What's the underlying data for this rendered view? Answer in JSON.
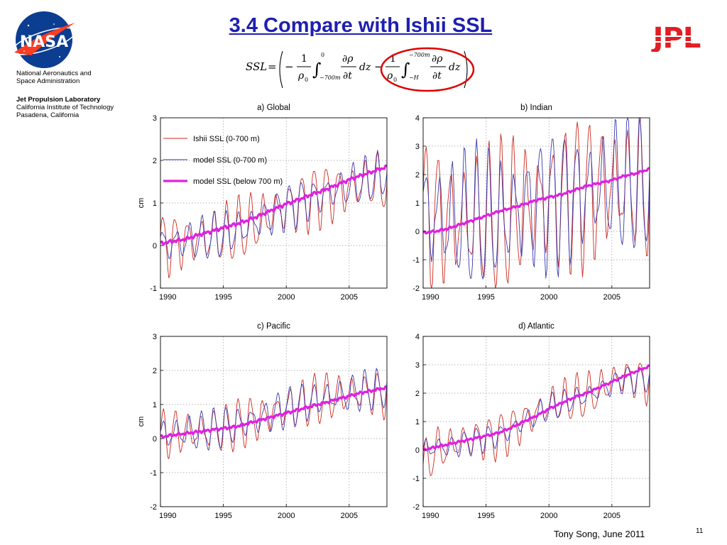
{
  "header": {
    "title": "3.4 Compare with Ishii SSL",
    "nasa_logo_text": "NASA",
    "agency_line1": "National Aeronautics and",
    "agency_line2": "Space Administration",
    "lab_line1": "Jet Propulsion Laboratory",
    "lab_line2": "California Institute of Technology",
    "lab_line3": "Pasadena, California",
    "jpl_logo_text": "JPL",
    "equation": {
      "lhs": "SSL",
      "one": "1",
      "rho0": "ρ",
      "sub0": "0",
      "upper1": "0",
      "lower1": "−700m",
      "upper2": "−700m",
      "lower2": "−H",
      "drho": "∂ρ",
      "dt": "∂t",
      "dz": "dz",
      "highlight_color": "#e00000"
    }
  },
  "footer": {
    "author": "Tony Song, June 2011",
    "slide_number": "11"
  },
  "colors": {
    "ishii": "#cc2a1e",
    "model": "#3a3ab0",
    "below": "#e020e0",
    "title": "#1f1fb0",
    "jpl": "#e21d23"
  },
  "legend": {
    "ishii": "Ishii SSL (0-700 m)",
    "model": "model SSL (0-700 m)",
    "below": "model SSL (below 700 m)"
  },
  "chart_data": [
    {
      "type": "line",
      "title": "a) Global",
      "ylabel": "cm",
      "xlim": [
        1990,
        2008
      ],
      "ylim": [
        -1,
        3
      ],
      "xticks": [
        1990,
        1995,
        2000,
        2005
      ],
      "yticks": [
        -1,
        0,
        1,
        2,
        3
      ],
      "grid": true,
      "legend": "top-left",
      "series": [
        {
          "name": "Ishii SSL (0-700 m)",
          "x": [
            1990,
            1991,
            1992,
            1993,
            1994,
            1995,
            1996,
            1997,
            1998,
            1999,
            2000,
            2001,
            2002,
            2003,
            2004,
            2005,
            2006,
            2007,
            2008
          ],
          "trend": [
            0.0,
            0.05,
            0.1,
            0.15,
            0.2,
            0.25,
            0.35,
            0.45,
            0.6,
            0.75,
            0.9,
            1.0,
            1.1,
            1.2,
            1.25,
            1.35,
            1.45,
            1.5,
            1.5
          ],
          "amplitude": 0.55
        },
        {
          "name": "model SSL (0-700 m)",
          "x": [
            1990,
            1991,
            1992,
            1993,
            1994,
            1995,
            1996,
            1997,
            1998,
            1999,
            2000,
            2001,
            2002,
            2003,
            2004,
            2005,
            2006,
            2007,
            2008
          ],
          "trend": [
            0.0,
            0.05,
            0.1,
            0.15,
            0.2,
            0.25,
            0.35,
            0.45,
            0.6,
            0.75,
            0.9,
            1.0,
            1.1,
            1.2,
            1.3,
            1.4,
            1.5,
            1.6,
            1.65
          ],
          "amplitude": 0.4
        },
        {
          "name": "model SSL (below 700 m)",
          "x": [
            1990,
            1991,
            1992,
            1993,
            1994,
            1995,
            1996,
            1997,
            1998,
            1999,
            2000,
            2001,
            2002,
            2003,
            2004,
            2005,
            2006,
            2007,
            2008
          ],
          "values": [
            0.05,
            0.1,
            0.15,
            0.25,
            0.33,
            0.42,
            0.5,
            0.6,
            0.72,
            0.85,
            0.98,
            1.08,
            1.2,
            1.3,
            1.42,
            1.55,
            1.65,
            1.75,
            1.85
          ]
        }
      ]
    },
    {
      "type": "line",
      "title": "b) Indian",
      "ylabel": "",
      "xlim": [
        1990,
        2008
      ],
      "ylim": [
        -2,
        4
      ],
      "xticks": [
        1990,
        1995,
        2000,
        2005
      ],
      "yticks": [
        -2,
        -1,
        0,
        1,
        2,
        3,
        4
      ],
      "grid": true,
      "legend": "",
      "series": [
        {
          "name": "Ishii SSL (0-700 m)",
          "x": [
            1990,
            1991,
            1992,
            1993,
            1994,
            1995,
            1996,
            1997,
            1998,
            1999,
            2000,
            2001,
            2002,
            2003,
            2004,
            2005,
            2006,
            2007,
            2008
          ],
          "trend": [
            0.6,
            0.5,
            0.4,
            0.4,
            0.4,
            0.4,
            0.4,
            0.6,
            0.8,
            1.0,
            1.1,
            1.2,
            1.3,
            1.4,
            1.5,
            1.6,
            1.6,
            1.5,
            1.5
          ],
          "amplitude": 2.0
        },
        {
          "name": "model SSL (0-700 m)",
          "x": [
            1990,
            1991,
            1992,
            1993,
            1994,
            1995,
            1996,
            1997,
            1998,
            1999,
            2000,
            2001,
            2002,
            2003,
            2004,
            2005,
            2006,
            2007,
            2008
          ],
          "trend": [
            0.6,
            0.5,
            0.4,
            0.4,
            0.4,
            0.4,
            0.4,
            0.6,
            0.8,
            1.0,
            1.1,
            1.2,
            1.3,
            1.4,
            1.5,
            1.6,
            1.6,
            1.6,
            1.6
          ],
          "amplitude": 1.85
        },
        {
          "name": "model SSL (below 700 m)",
          "x": [
            1990,
            1991,
            1992,
            1993,
            1994,
            1995,
            1996,
            1997,
            1998,
            1999,
            2000,
            2001,
            2002,
            2003,
            2004,
            2005,
            2006,
            2007,
            2008
          ],
          "values": [
            -0.05,
            0.0,
            0.1,
            0.25,
            0.4,
            0.55,
            0.7,
            0.82,
            0.95,
            1.1,
            1.2,
            1.3,
            1.45,
            1.6,
            1.7,
            1.8,
            1.95,
            2.05,
            2.2
          ]
        }
      ]
    },
    {
      "type": "line",
      "title": "c) Pacific",
      "ylabel": "cm",
      "xlim": [
        1990,
        2008
      ],
      "ylim": [
        -2,
        3
      ],
      "xticks": [
        1990,
        1995,
        2000,
        2005
      ],
      "yticks": [
        -2,
        -1,
        0,
        1,
        2,
        3
      ],
      "grid": true,
      "legend": "",
      "series": [
        {
          "name": "Ishii SSL (0-700 m)",
          "x": [
            1990,
            1991,
            1992,
            1993,
            1994,
            1995,
            1996,
            1997,
            1998,
            1999,
            2000,
            2001,
            2002,
            2003,
            2004,
            2005,
            2006,
            2007,
            2008
          ],
          "trend": [
            0.1,
            0.15,
            0.2,
            0.2,
            0.25,
            0.3,
            0.4,
            0.5,
            0.6,
            0.75,
            0.9,
            1.0,
            1.1,
            1.2,
            1.25,
            1.3,
            1.35,
            1.3,
            1.3
          ],
          "amplitude": 0.55
        },
        {
          "name": "model SSL (0-700 m)",
          "x": [
            1990,
            1991,
            1992,
            1993,
            1994,
            1995,
            1996,
            1997,
            1998,
            1999,
            2000,
            2001,
            2002,
            2003,
            2004,
            2005,
            2006,
            2007,
            2008
          ],
          "trend": [
            0.1,
            0.15,
            0.2,
            0.2,
            0.25,
            0.3,
            0.4,
            0.5,
            0.6,
            0.75,
            0.9,
            1.0,
            1.1,
            1.2,
            1.25,
            1.3,
            1.4,
            1.45,
            1.45
          ],
          "amplitude": 0.45
        },
        {
          "name": "model SSL (below 700 m)",
          "x": [
            1990,
            1991,
            1992,
            1993,
            1994,
            1995,
            1996,
            1997,
            1998,
            1999,
            2000,
            2001,
            2002,
            2003,
            2004,
            2005,
            2006,
            2007,
            2008
          ],
          "values": [
            0.05,
            0.1,
            0.15,
            0.2,
            0.25,
            0.3,
            0.35,
            0.45,
            0.55,
            0.65,
            0.75,
            0.85,
            0.95,
            1.05,
            1.15,
            1.25,
            1.35,
            1.42,
            1.5
          ]
        }
      ]
    },
    {
      "type": "line",
      "title": "d) Atlantic",
      "ylabel": "",
      "xlim": [
        1990,
        2008
      ],
      "ylim": [
        -2,
        4
      ],
      "xticks": [
        1990,
        1995,
        2000,
        2005
      ],
      "yticks": [
        -2,
        -1,
        0,
        1,
        2,
        3,
        4
      ],
      "grid": true,
      "legend": "",
      "series": [
        {
          "name": "Ishii SSL (0-700 m)",
          "x": [
            1990,
            1991,
            1992,
            1993,
            1994,
            1995,
            1996,
            1997,
            1998,
            1999,
            2000,
            2001,
            2002,
            2003,
            2004,
            2005,
            2006,
            2007,
            2008
          ],
          "trend": [
            -0.6,
            0.0,
            0.1,
            0.3,
            0.4,
            0.4,
            0.5,
            0.7,
            1.0,
            1.3,
            1.6,
            1.7,
            1.8,
            1.9,
            2.1,
            2.4,
            2.6,
            2.5,
            2.4
          ],
          "amplitude": 0.6
        },
        {
          "name": "model SSL (0-700 m)",
          "x": [
            1990,
            1991,
            1992,
            1993,
            1994,
            1995,
            1996,
            1997,
            1998,
            1999,
            2000,
            2001,
            2002,
            2003,
            2004,
            2005,
            2006,
            2007,
            2008
          ],
          "trend": [
            0.0,
            0.1,
            0.1,
            0.2,
            0.3,
            0.4,
            0.5,
            0.7,
            1.0,
            1.2,
            1.5,
            1.6,
            1.8,
            1.9,
            2.1,
            2.3,
            2.5,
            2.5,
            2.5
          ],
          "amplitude": 0.35
        },
        {
          "name": "model SSL (below 700 m)",
          "x": [
            1990,
            1991,
            1992,
            1993,
            1994,
            1995,
            1996,
            1997,
            1998,
            1999,
            2000,
            2001,
            2002,
            2003,
            2004,
            2005,
            2006,
            2007,
            2008
          ],
          "values": [
            0.0,
            0.1,
            0.2,
            0.3,
            0.4,
            0.5,
            0.6,
            0.78,
            1.0,
            1.2,
            1.45,
            1.65,
            1.85,
            2.0,
            2.2,
            2.4,
            2.6,
            2.78,
            2.95
          ]
        }
      ]
    }
  ]
}
